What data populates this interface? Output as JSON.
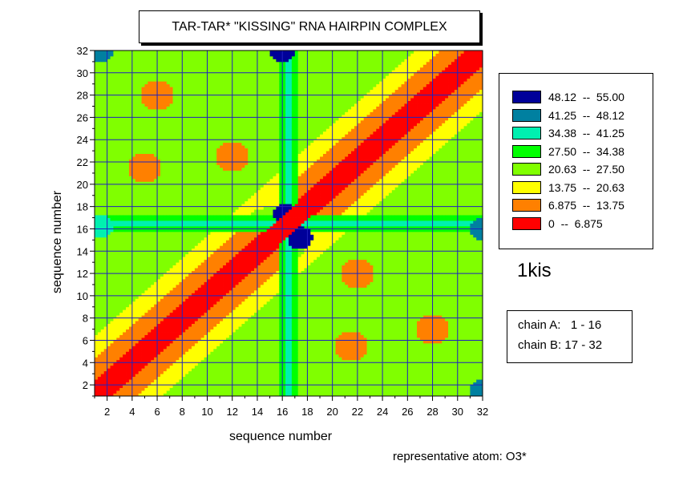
{
  "chart_data": {
    "type": "heatmap",
    "title": "TAR-TAR* \"KISSING\" RNA HAIRPIN COMPLEX",
    "xlabel": "sequence number",
    "ylabel": "sequence number",
    "xlim": [
      1,
      32
    ],
    "ylim": [
      1,
      32
    ],
    "grid": true,
    "x_ticks": [
      "2",
      "4",
      "6",
      "8",
      "10",
      "12",
      "14",
      "16",
      "18",
      "20",
      "22",
      "24",
      "26",
      "28",
      "30",
      "32"
    ],
    "y_ticks": [
      "2",
      "4",
      "6",
      "8",
      "10",
      "12",
      "14",
      "16",
      "18",
      "20",
      "22",
      "24",
      "26",
      "28",
      "30",
      "32"
    ],
    "legend": [
      {
        "label": "48.12  --  55.00",
        "color": "#000099"
      },
      {
        "label": "41.25  --  48.12",
        "color": "#0080a0"
      },
      {
        "label": "34.38  --  41.25",
        "color": "#00f0b0"
      },
      {
        "label": "27.50  --  34.38",
        "color": "#00ff00"
      },
      {
        "label": "20.63  --  27.50",
        "color": "#80ff00"
      },
      {
        "label": "13.75  --  20.63",
        "color": "#ffff00"
      },
      {
        "label": "6.875  --  13.75",
        "color": "#ff8000"
      },
      {
        "label": "0  --  6.875",
        "color": "#ff0000"
      }
    ],
    "legend_placement": "right",
    "levels": [
      0,
      6.875,
      13.75,
      20.63,
      27.5,
      34.38,
      41.25,
      48.12,
      55.0
    ],
    "hotspots": [
      {
        "x": 6,
        "y": 28,
        "level": "6.875-13.75"
      },
      {
        "x": 5,
        "y": 21.5,
        "level": "6.875-13.75"
      },
      {
        "x": 12,
        "y": 22.5,
        "level": "6.875-13.75"
      },
      {
        "x": 22,
        "y": 12,
        "level": "6.875-13.75"
      },
      {
        "x": 28,
        "y": 7,
        "level": "6.875-13.75"
      },
      {
        "x": 21.5,
        "y": 5.5,
        "level": "6.875-13.75"
      },
      {
        "x": 16.3,
        "y": 17.3,
        "level": "48.12-55.00"
      },
      {
        "x": 17.4,
        "y": 15.2,
        "level": "48.12-55.00"
      },
      {
        "x": 16,
        "y": 32,
        "level": "48.12-55.00"
      },
      {
        "x": 1.5,
        "y": 32,
        "level": "41.25-48.12"
      },
      {
        "x": 32,
        "y": 1.5,
        "level": "41.25-48.12"
      }
    ]
  },
  "labels": {
    "title": "TAR-TAR* \"KISSING\" RNA HAIRPIN COMPLEX",
    "xlabel": "sequence number",
    "ylabel": "sequence number",
    "pdb_id": "1kis",
    "chain_a": "chain A:   1 - 16",
    "chain_b": "chain B: 17 - 32",
    "atom_note": "representative atom: O3*"
  }
}
